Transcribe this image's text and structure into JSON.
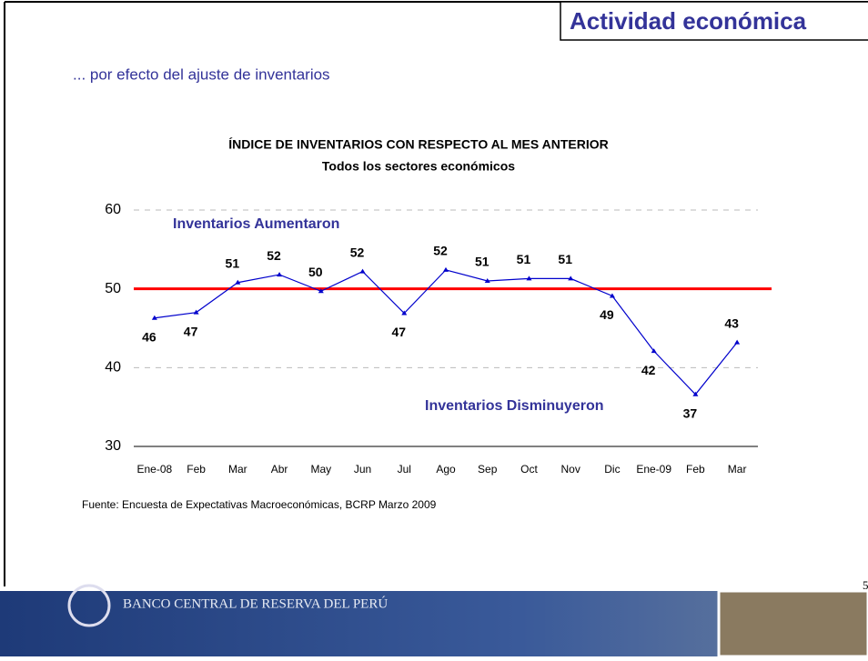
{
  "slide_title": "Actividad económica",
  "subtitle": "... por efecto del ajuste de inventarios",
  "source": "Fuente: Encuesta de Expectativas Macroeconómicas, BCRP Marzo 2009",
  "page_number": "5",
  "footer": "BANCO CENTRAL DE RESERVA DEL PERÚ",
  "chart_data": {
    "type": "line",
    "title": "ÍNDICE DE INVENTARIOS CON RESPECTO AL MES ANTERIOR",
    "subtitle": "Todos los sectores económicos",
    "categories": [
      "Ene-08",
      "Feb",
      "Mar",
      "Abr",
      "May",
      "Jun",
      "Jul",
      "Ago",
      "Sep",
      "Oct",
      "Nov",
      "Dic",
      "Ene-09",
      "Feb",
      "Mar"
    ],
    "values": [
      46.3,
      47.0,
      50.8,
      51.8,
      49.7,
      52.2,
      46.9,
      52.4,
      51.0,
      51.3,
      51.3,
      49.1,
      42.1,
      36.6,
      43.2
    ],
    "value_labels": [
      "46",
      "47",
      "51",
      "52",
      "50",
      "52",
      "47",
      "52",
      "51",
      "51",
      "51",
      "49",
      "42",
      "37",
      "43"
    ],
    "color": "#0000cc",
    "ylim": [
      30,
      60
    ],
    "yticks": [
      30,
      40,
      50,
      60
    ],
    "grid": true,
    "reference_line": {
      "value": 50,
      "color": "#ff0000"
    },
    "annotations": [
      "Inventarios Aumentaron",
      "Inventarios Disminuyeron"
    ]
  }
}
